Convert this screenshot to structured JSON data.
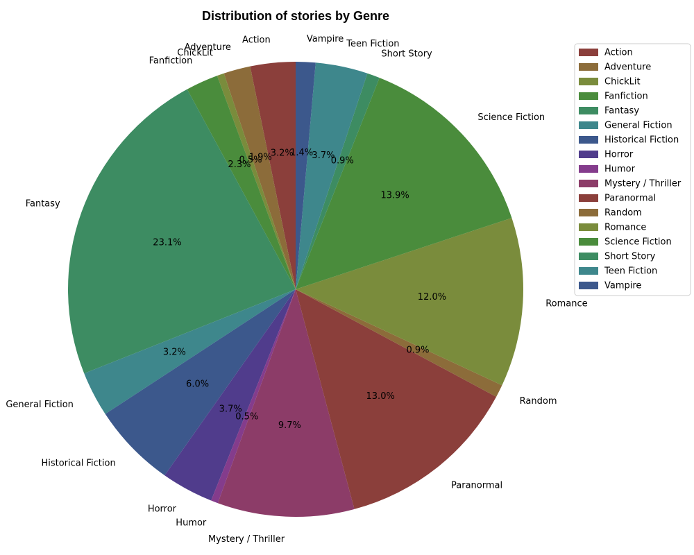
{
  "chart_data": {
    "type": "pie",
    "title": "Distribution of stories by Genre",
    "legend_position": "right",
    "start_angle_deg": 90,
    "direction": "counterclockwise",
    "slices": [
      {
        "label": "Action",
        "value": 3.2,
        "pct_label": "3.2%",
        "color": "#8b3f3b"
      },
      {
        "label": "Adventure",
        "value": 1.9,
        "pct_label": "1.9%",
        "color": "#8c6c3a"
      },
      {
        "label": "ChickLit",
        "value": 0.5,
        "pct_label": "0.5%",
        "color": "#7a8c3c"
      },
      {
        "label": "Fanfiction",
        "value": 2.3,
        "pct_label": "2.3%",
        "color": "#4a8c3c"
      },
      {
        "label": "Fantasy",
        "value": 23.1,
        "pct_label": "23.1%",
        "color": "#3d8c62"
      },
      {
        "label": "General Fiction",
        "value": 3.2,
        "pct_label": "3.2%",
        "color": "#3e878c"
      },
      {
        "label": "Historical Fiction",
        "value": 6.0,
        "pct_label": "6.0%",
        "color": "#3c588c"
      },
      {
        "label": "Horror",
        "value": 3.7,
        "pct_label": "3.7%",
        "color": "#503c8c"
      },
      {
        "label": "Humor",
        "value": 0.5,
        "pct_label": "0.5%",
        "color": "#843c8c"
      },
      {
        "label": "Mystery / Thriller",
        "value": 9.7,
        "pct_label": "9.7%",
        "color": "#8c3c68"
      },
      {
        "label": "Paranormal",
        "value": 13.0,
        "pct_label": "13.0%",
        "color": "#8b3f3b"
      },
      {
        "label": "Random",
        "value": 0.9,
        "pct_label": "0.9%",
        "color": "#8c6c3a"
      },
      {
        "label": "Romance",
        "value": 12.0,
        "pct_label": "12.0%",
        "color": "#7a8c3c"
      },
      {
        "label": "Science Fiction",
        "value": 13.9,
        "pct_label": "13.9%",
        "color": "#4a8c3c"
      },
      {
        "label": "Short Story",
        "value": 0.9,
        "pct_label": "0.9%",
        "color": "#3d8c62"
      },
      {
        "label": "Teen Fiction",
        "value": 3.7,
        "pct_label": "3.7%",
        "color": "#3e878c"
      },
      {
        "label": "Vampire",
        "value": 1.4,
        "pct_label": "1.4%",
        "color": "#3c588c"
      }
    ]
  }
}
